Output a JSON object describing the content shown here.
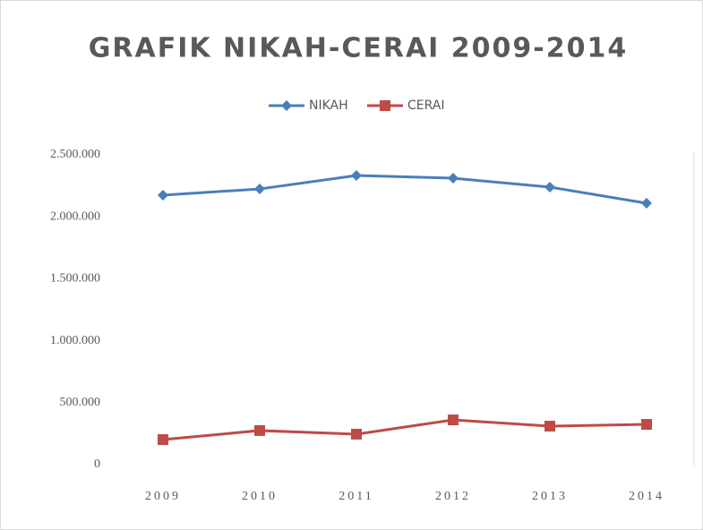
{
  "chart_data": {
    "type": "line",
    "title": "GRAFIK NIKAH-CERAI 2009-2014",
    "categories": [
      "2009",
      "2010",
      "2011",
      "2012",
      "2013",
      "2014"
    ],
    "series": [
      {
        "name": "NIKAH",
        "color": "#4a7ebb",
        "marker": "diamond",
        "values": [
          2175000,
          2225000,
          2334000,
          2312000,
          2240000,
          2110000
        ]
      },
      {
        "name": "CERAI",
        "color": "#be4b48",
        "marker": "square",
        "values": [
          202000,
          275000,
          246000,
          361000,
          311000,
          325000
        ]
      }
    ],
    "ylim": [
      0,
      2500000
    ],
    "yticks": [
      0,
      {
        "value": 500000,
        "label": "500.000"
      },
      {
        "value": 1000000,
        "label": "1.000.000"
      },
      {
        "value": 1500000,
        "label": "1.500.000"
      },
      {
        "value": 2000000,
        "label": "2.000.000"
      },
      {
        "value": 2500000,
        "label": "2.500.000"
      }
    ],
    "legend": "top"
  }
}
